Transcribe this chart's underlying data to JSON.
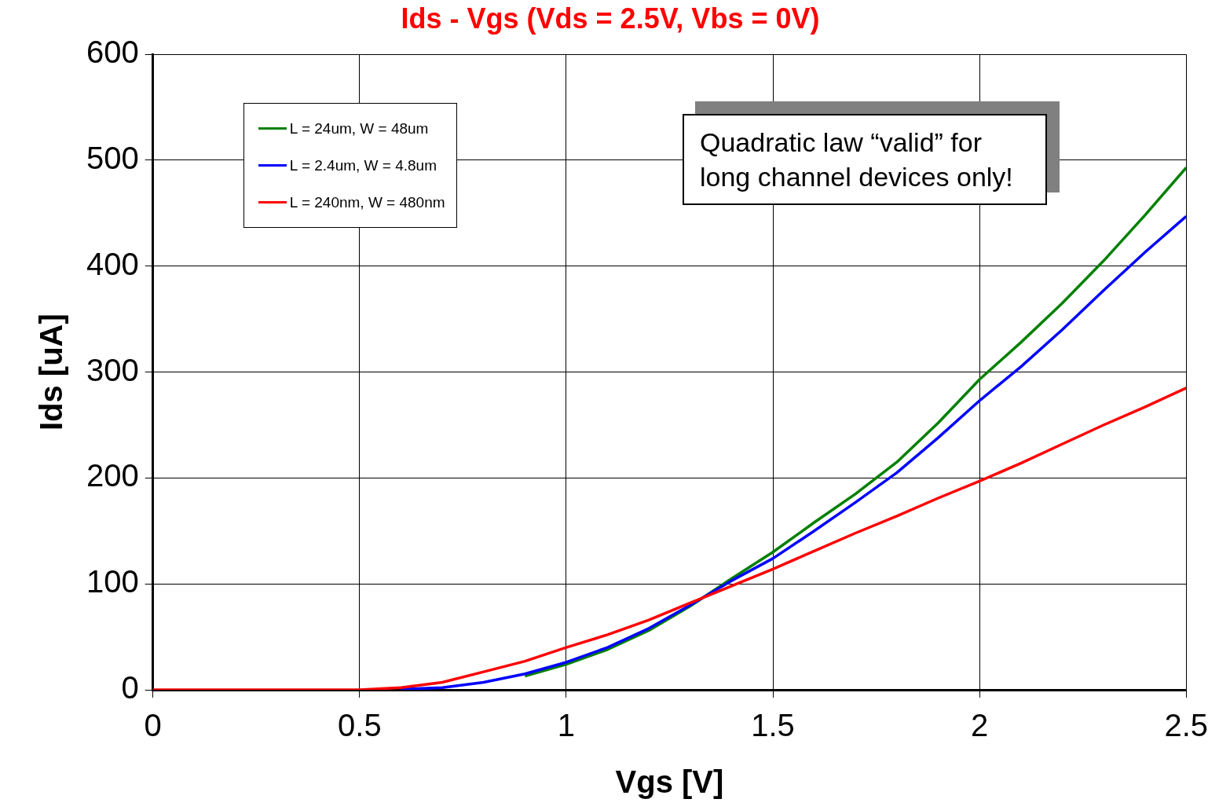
{
  "chart_data": {
    "type": "line",
    "title": "Ids - Vgs (Vds = 2.5V, Vbs = 0V)",
    "xlabel": "Vgs [V]",
    "ylabel": "Ids [uA]",
    "x": [
      0,
      0.5,
      0.6,
      0.7,
      0.8,
      0.9,
      1.0,
      1.1,
      1.2,
      1.3,
      1.4,
      1.5,
      1.6,
      1.7,
      1.8,
      1.9,
      2.0,
      2.1,
      2.2,
      2.3,
      2.4,
      2.5
    ],
    "series": [
      {
        "name": "L = 24um, W = 48um",
        "color": "#008000",
        "values": [
          null,
          null,
          null,
          null,
          null,
          13,
          24,
          38,
          56,
          79,
          105,
          130,
          158,
          185,
          215,
          252,
          293,
          328,
          365,
          405,
          448,
          493
        ]
      },
      {
        "name": "L = 2.4um, W = 4.8um",
        "color": "#0000ff",
        "values": [
          null,
          null,
          0.5,
          2,
          7,
          15,
          26,
          40,
          58,
          80,
          103,
          124,
          150,
          177,
          205,
          238,
          273,
          305,
          340,
          377,
          413,
          447
        ]
      },
      {
        "name": "L = 240nm, W = 480nm",
        "color": "#ff0000",
        "values": [
          0,
          0,
          2,
          7,
          17,
          27,
          40,
          52,
          66,
          82,
          98,
          114,
          131,
          148,
          164,
          181,
          197,
          214,
          232,
          250,
          267,
          285
        ]
      }
    ],
    "xlim": [
      0,
      2.5
    ],
    "xticks": [
      0,
      0.5,
      1,
      1.5,
      2,
      2.5
    ],
    "ylim": [
      0,
      600
    ],
    "yticks": [
      0,
      100,
      200,
      300,
      400,
      500,
      600
    ],
    "grid": true,
    "legend": "top left",
    "marker": "none",
    "line_style": "solid",
    "annotations": [
      "Quadratic law “valid” for long channel devices only!"
    ]
  }
}
